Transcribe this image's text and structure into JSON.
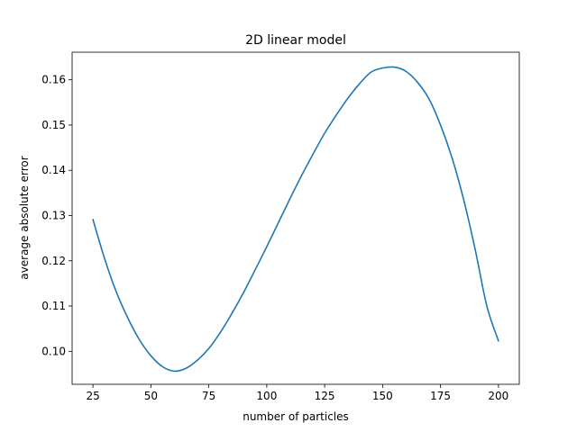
{
  "chart_data": {
    "type": "line",
    "title": "2D linear model",
    "xlabel": "number of particles",
    "ylabel": "average absolute error",
    "xlim": [
      16,
      209
    ],
    "ylim": [
      0.0927,
      0.1661
    ],
    "xticks": [
      25,
      50,
      75,
      100,
      125,
      150,
      175,
      200
    ],
    "yticks": [
      0.1,
      0.11,
      0.12,
      0.13,
      0.14,
      0.15,
      0.16
    ],
    "ytick_labels": [
      "0.10",
      "0.11",
      "0.12",
      "0.13",
      "0.14",
      "0.15",
      "0.16"
    ],
    "grid": false,
    "legend": "none",
    "series": [
      {
        "color": "#1f77b4",
        "x": [
          25,
          30,
          35,
          40,
          45,
          50,
          55,
          60,
          65,
          70,
          75,
          80,
          85,
          90,
          95,
          100,
          105,
          110,
          115,
          120,
          125,
          130,
          135,
          140,
          145,
          150,
          155,
          160,
          165,
          170,
          175,
          180,
          185,
          190,
          195,
          200
        ],
        "y": [
          0.1291,
          0.1205,
          0.1132,
          0.1074,
          0.1026,
          0.099,
          0.0966,
          0.0956,
          0.0962,
          0.098,
          0.1006,
          0.1042,
          0.1084,
          0.113,
          0.118,
          0.1231,
          0.1284,
          0.1337,
          0.1388,
          0.1436,
          0.1482,
          0.1522,
          0.1559,
          0.1591,
          0.1617,
          0.1626,
          0.1628,
          0.1619,
          0.1595,
          0.1558,
          0.15,
          0.1427,
          0.1335,
          0.1224,
          0.11,
          0.1023
        ]
      }
    ]
  }
}
